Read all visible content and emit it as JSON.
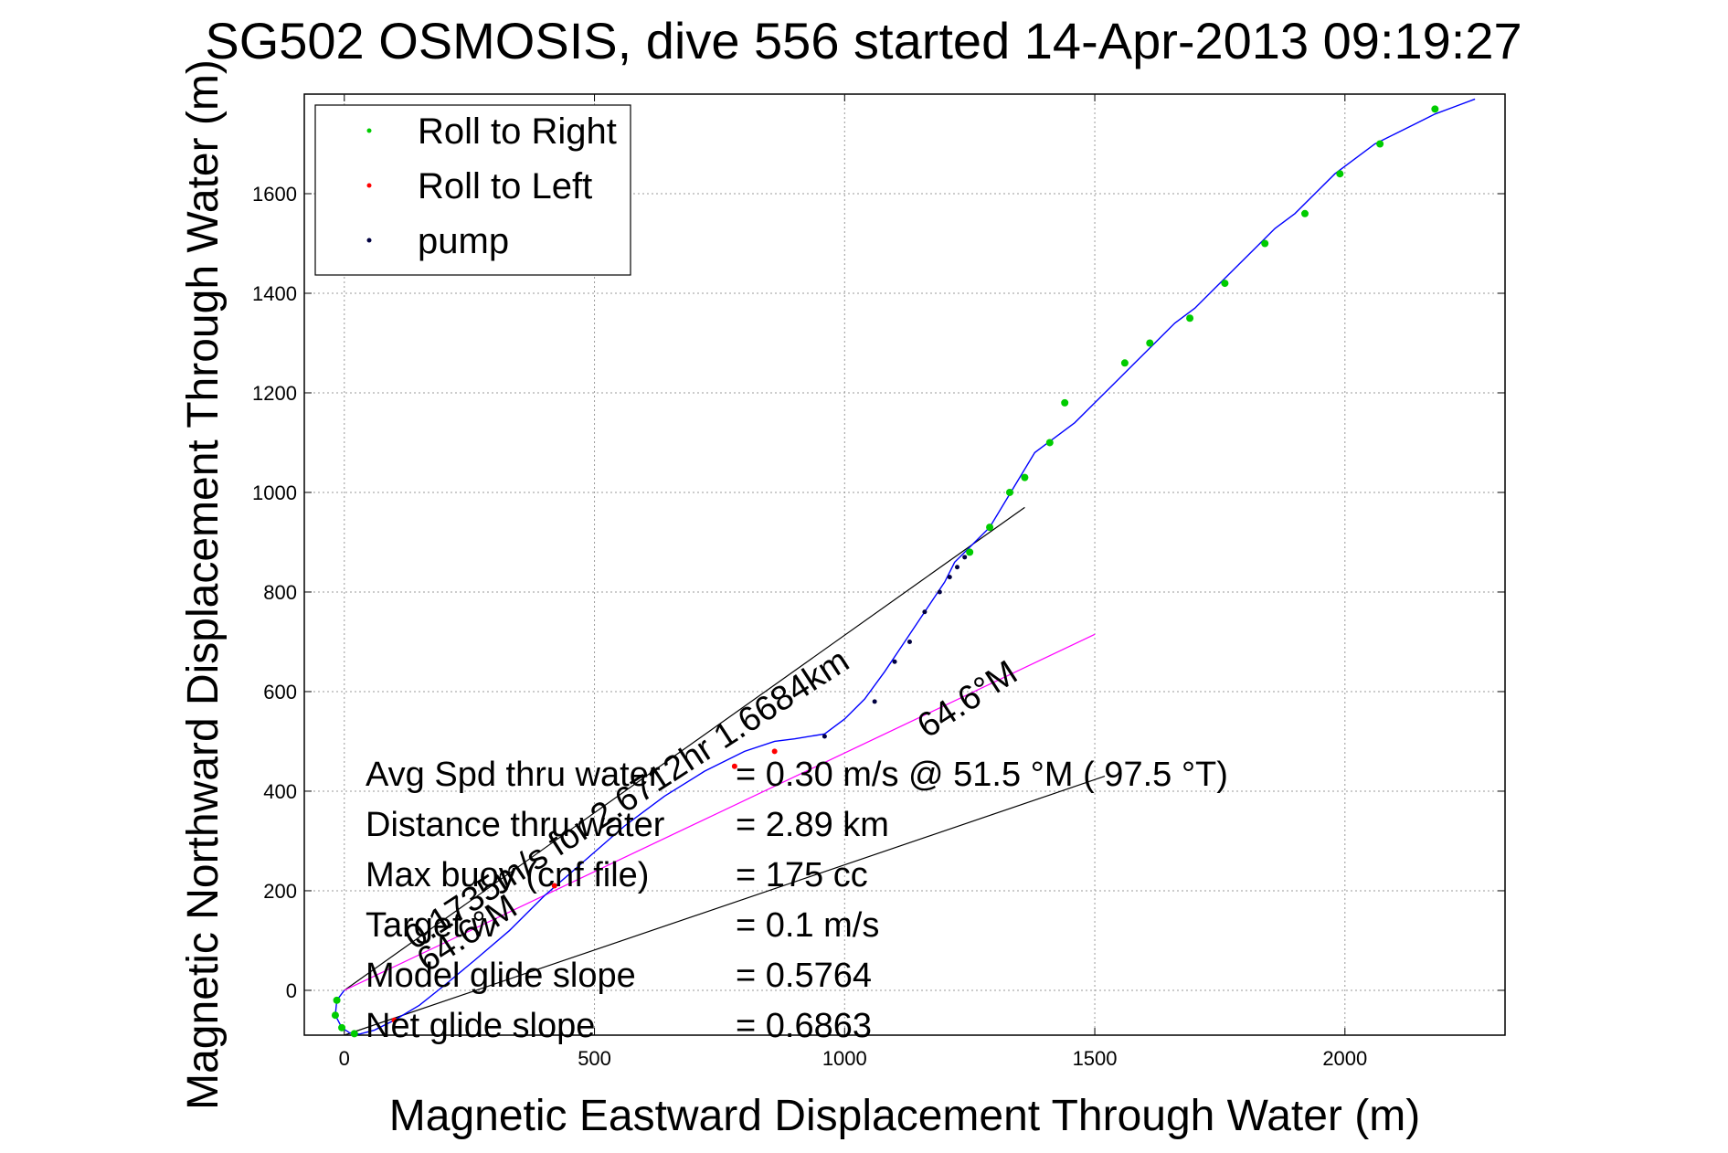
{
  "chart_data": {
    "type": "line",
    "title": "SG502 OSMOSIS, dive 556 started 14-Apr-2013 09:19:27",
    "xlabel": "Magnetic Eastward Displacement Through Water (m)",
    "ylabel": "Magnetic Northward Displacement Through Water (m)",
    "xlim": [
      -80,
      2320
    ],
    "ylim": [
      -90,
      1800
    ],
    "xticks": [
      0,
      500,
      1000,
      1500,
      2000
    ],
    "yticks": [
      0,
      200,
      400,
      600,
      800,
      1000,
      1200,
      1400,
      1600
    ],
    "grid": true,
    "legend_position": "top-left",
    "legend": [
      {
        "label": "Roll to Right",
        "color": "#00cc00"
      },
      {
        "label": "Roll to Left",
        "color": "#ff0000"
      },
      {
        "label": "pump",
        "color": "#000040"
      }
    ],
    "track": {
      "name": "glider track",
      "color": "#0000ff",
      "x": [
        0,
        -15,
        -18,
        -5,
        10,
        30,
        60,
        100,
        150,
        200,
        260,
        330,
        400,
        480,
        560,
        640,
        720,
        800,
        860,
        900,
        960,
        1000,
        1040,
        1080,
        1120,
        1160,
        1200,
        1220,
        1240,
        1260,
        1290,
        1320,
        1350,
        1380,
        1420,
        1460,
        1500,
        1540,
        1580,
        1620,
        1660,
        1700,
        1740,
        1780,
        1820,
        1860,
        1900,
        1940,
        1980,
        2020,
        2060,
        2100,
        2140,
        2180,
        2220,
        2260
      ],
      "y": [
        0,
        -20,
        -50,
        -75,
        -85,
        -88,
        -80,
        -60,
        -30,
        10,
        60,
        120,
        190,
        260,
        330,
        390,
        440,
        480,
        500,
        505,
        515,
        545,
        585,
        640,
        700,
        760,
        820,
        860,
        880,
        900,
        930,
        980,
        1030,
        1080,
        1110,
        1140,
        1180,
        1220,
        1260,
        1300,
        1340,
        1370,
        1410,
        1450,
        1490,
        1530,
        1560,
        1600,
        1640,
        1670,
        1700,
        1720,
        1740,
        1760,
        1775,
        1790
      ]
    },
    "roll_right_points": {
      "x": [
        -15,
        -18,
        -5,
        20,
        1250,
        1290,
        1330,
        1360,
        1410,
        1440,
        1560,
        1610,
        1690,
        1760,
        1840,
        1920,
        1990,
        2070,
        2180
      ],
      "y": [
        -20,
        -50,
        -75,
        -87,
        880,
        930,
        1000,
        1030,
        1100,
        1180,
        1260,
        1300,
        1350,
        1420,
        1500,
        1560,
        1640,
        1700,
        1770
      ]
    },
    "roll_left_points": {
      "x": [
        100,
        420,
        780,
        860
      ],
      "y": [
        -60,
        210,
        450,
        480
      ]
    },
    "pump_points": {
      "x": [
        960,
        1060,
        1100,
        1130,
        1160,
        1190,
        1210,
        1225,
        1240
      ],
      "y": [
        510,
        580,
        660,
        700,
        760,
        800,
        830,
        850,
        870
      ]
    },
    "reference_lines": [
      {
        "name": "current-line",
        "color": "#000000",
        "x": [
          0,
          1360
        ],
        "y": [
          0,
          970
        ]
      },
      {
        "name": "heading-line-magenta",
        "color": "#ff00ff",
        "x": [
          0,
          1500
        ],
        "y": [
          0,
          715
        ]
      },
      {
        "name": "heading-line-lower",
        "color": "#000000",
        "x": [
          0,
          1520
        ],
        "y": [
          -90,
          430
        ]
      }
    ],
    "rotated_annotations": [
      {
        "text": "0.1735m/s for 2.6712hr 1.6684km",
        "x": 140,
        "y": 80,
        "angle_deg": -33
      },
      {
        "text": "64.6°M",
        "x": 1165,
        "y": 505,
        "angle_deg": -33
      },
      {
        "text": "64.6°M",
        "x": 165,
        "y": 35,
        "angle_deg": -33
      }
    ],
    "stats": [
      {
        "label": "Avg Spd thru water",
        "value": "= 0.30 m/s @  51.5 °M ( 97.5 °T)"
      },
      {
        "label": "Distance thru water",
        "value": "=  2.89 km"
      },
      {
        "label": "Max buoy (cnf file)",
        "value": "= 175 cc"
      },
      {
        "label": "Target w",
        "value": "= 0.1 m/s"
      },
      {
        "label": "Model glide slope",
        "value": "= 0.5764"
      },
      {
        "label": "Net glide slope",
        "value": "= 0.6863"
      }
    ]
  }
}
